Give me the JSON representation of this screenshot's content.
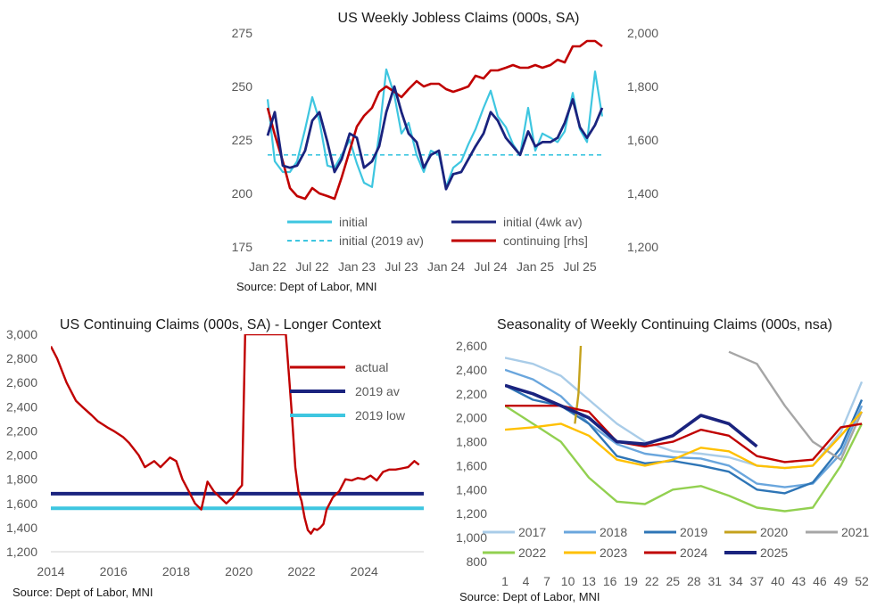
{
  "chart_data": [
    {
      "type": "line",
      "title": "US Weekly Jobless Claims (000s, SA)",
      "source": "Source: Dept of Labor, MNI",
      "x_tick_labels": [
        "Jan 22",
        "Jul 22",
        "Jan 23",
        "Jul 23",
        "Jan 24",
        "Jul 24",
        "Jan 25",
        "Jul 25"
      ],
      "x_range": [
        "2022-01",
        "2025-10"
      ],
      "ylim": [
        175,
        275
      ],
      "y_ticks": [
        "175",
        "200",
        "225",
        "250",
        "275"
      ],
      "y2lim": [
        1200,
        2000
      ],
      "y2_ticks": [
        "1,200",
        "1,400",
        "1,600",
        "1,800",
        "2,000"
      ],
      "grid": false,
      "legend_position": "bottom",
      "colors": {
        "initial": "#3ec6e0",
        "initial_4wk": "#1a237e",
        "initial_2019": "#3ec6e0",
        "continuing": "#c00000"
      },
      "series": [
        {
          "name": "initial",
          "axis": "left",
          "x": [
            2022.0,
            2022.08,
            2022.17,
            2022.25,
            2022.33,
            2022.42,
            2022.5,
            2022.58,
            2022.67,
            2022.75,
            2022.83,
            2022.92,
            2023.0,
            2023.08,
            2023.17,
            2023.25,
            2023.33,
            2023.42,
            2023.5,
            2023.58,
            2023.67,
            2023.75,
            2023.83,
            2023.92,
            2024.0,
            2024.08,
            2024.17,
            2024.25,
            2024.33,
            2024.42,
            2024.5,
            2024.58,
            2024.67,
            2024.75,
            2024.83,
            2024.92,
            2025.0,
            2025.08,
            2025.17,
            2025.25,
            2025.33,
            2025.42,
            2025.5,
            2025.58,
            2025.67,
            2025.75
          ],
          "values": [
            244,
            215,
            210,
            210,
            215,
            230,
            245,
            234,
            213,
            212,
            218,
            225,
            214,
            205,
            203,
            228,
            258,
            246,
            228,
            233,
            218,
            210,
            220,
            218,
            203,
            212,
            215,
            223,
            230,
            240,
            248,
            236,
            231,
            223,
            218,
            240,
            220,
            228,
            226,
            224,
            229,
            247,
            230,
            224,
            257,
            236
          ]
        },
        {
          "name": "initial (4wk av)",
          "axis": "left",
          "x": [
            2022.0,
            2022.08,
            2022.17,
            2022.25,
            2022.33,
            2022.42,
            2022.5,
            2022.58,
            2022.67,
            2022.75,
            2022.83,
            2022.92,
            2023.0,
            2023.08,
            2023.17,
            2023.25,
            2023.33,
            2023.42,
            2023.5,
            2023.58,
            2023.67,
            2023.75,
            2023.83,
            2023.92,
            2024.0,
            2024.08,
            2024.17,
            2024.25,
            2024.33,
            2024.42,
            2024.5,
            2024.58,
            2024.67,
            2024.75,
            2024.83,
            2024.92,
            2025.0,
            2025.08,
            2025.17,
            2025.25,
            2025.33,
            2025.42,
            2025.5,
            2025.58,
            2025.67,
            2025.75
          ],
          "values": [
            227,
            238,
            213,
            212,
            213,
            220,
            234,
            238,
            224,
            210,
            216,
            228,
            226,
            212,
            215,
            222,
            238,
            250,
            238,
            228,
            224,
            212,
            218,
            220,
            202,
            209,
            210,
            216,
            222,
            228,
            238,
            234,
            226,
            222,
            218,
            229,
            222,
            224,
            224,
            226,
            233,
            244,
            231,
            226,
            232,
            240
          ]
        },
        {
          "name": "initial (2019 av)",
          "axis": "left",
          "style": "dashed",
          "x": [
            2022.0,
            2025.75
          ],
          "values": [
            218,
            218
          ]
        },
        {
          "name": "continuing [rhs]",
          "axis": "right",
          "x": [
            2022.0,
            2022.08,
            2022.17,
            2022.25,
            2022.33,
            2022.42,
            2022.5,
            2022.58,
            2022.67,
            2022.75,
            2022.83,
            2022.92,
            2023.0,
            2023.08,
            2023.17,
            2023.25,
            2023.33,
            2023.42,
            2023.5,
            2023.58,
            2023.67,
            2023.75,
            2023.83,
            2023.92,
            2024.0,
            2024.08,
            2024.17,
            2024.25,
            2024.33,
            2024.42,
            2024.5,
            2024.58,
            2024.67,
            2024.75,
            2024.83,
            2024.92,
            2025.0,
            2025.08,
            2025.17,
            2025.25,
            2025.33,
            2025.42,
            2025.5,
            2025.58,
            2025.67,
            2025.75
          ],
          "values": [
            1720,
            1620,
            1520,
            1420,
            1390,
            1380,
            1420,
            1400,
            1390,
            1380,
            1460,
            1560,
            1650,
            1690,
            1720,
            1780,
            1800,
            1780,
            1760,
            1790,
            1820,
            1800,
            1810,
            1810,
            1790,
            1780,
            1790,
            1800,
            1840,
            1830,
            1860,
            1860,
            1870,
            1880,
            1870,
            1870,
            1880,
            1870,
            1880,
            1900,
            1890,
            1950,
            1950,
            1970,
            1970,
            1950
          ]
        }
      ]
    },
    {
      "type": "line",
      "title": "US Continuing Claims (000s, SA) - Longer Context",
      "source": "Source: Dept of Labor, MNI",
      "x_tick_labels": [
        "2014",
        "2016",
        "2018",
        "2020",
        "2022",
        "2024"
      ],
      "xlim": [
        2014,
        2025.9
      ],
      "ylim": [
        1200,
        3000
      ],
      "y_ticks": [
        "1,200",
        "1,400",
        "1,600",
        "1,800",
        "2,000",
        "2,200",
        "2,400",
        "2,600",
        "2,800",
        "3,000"
      ],
      "grid": false,
      "legend_position": "top-right",
      "colors": {
        "actual": "#c00000",
        "av2019": "#1a237e",
        "low2019": "#3ec6e0"
      },
      "series": [
        {
          "name": "actual",
          "x": [
            2014.0,
            2014.2,
            2014.5,
            2014.8,
            2015.0,
            2015.3,
            2015.5,
            2015.8,
            2016.0,
            2016.3,
            2016.5,
            2016.8,
            2017.0,
            2017.3,
            2017.5,
            2017.8,
            2018.0,
            2018.2,
            2018.4,
            2018.6,
            2018.8,
            2019.0,
            2019.2,
            2019.4,
            2019.6,
            2019.8,
            2020.0,
            2020.1,
            2020.2,
            2021.5,
            2021.6,
            2021.7,
            2021.8,
            2021.9,
            2022.0,
            2022.1,
            2022.2,
            2022.3,
            2022.4,
            2022.5,
            2022.6,
            2022.7,
            2022.8,
            2022.9,
            2023.0,
            2023.2,
            2023.4,
            2023.6,
            2023.8,
            2024.0,
            2024.2,
            2024.4,
            2024.6,
            2024.8,
            2025.0,
            2025.2,
            2025.4,
            2025.6,
            2025.75
          ],
          "values": [
            2900,
            2800,
            2600,
            2450,
            2400,
            2330,
            2280,
            2230,
            2200,
            2150,
            2100,
            2000,
            1900,
            1950,
            1900,
            1980,
            1950,
            1800,
            1700,
            1600,
            1550,
            1780,
            1700,
            1650,
            1600,
            1650,
            1720,
            1750,
            3000,
            3000,
            2650,
            2300,
            1900,
            1700,
            1620,
            1480,
            1380,
            1350,
            1390,
            1380,
            1400,
            1430,
            1550,
            1600,
            1650,
            1700,
            1800,
            1790,
            1810,
            1800,
            1830,
            1790,
            1860,
            1880,
            1880,
            1890,
            1900,
            1950,
            1920
          ]
        },
        {
          "name": "2019 av",
          "x": [
            2014,
            2025.9
          ],
          "values": [
            1680,
            1680
          ]
        },
        {
          "name": "2019 low",
          "x": [
            2014,
            2025.9
          ],
          "values": [
            1560,
            1560
          ]
        }
      ]
    },
    {
      "type": "line",
      "title": "Seasonality of Weekly Continuing Claims (000s, nsa)",
      "source": "Source: Dept of Labor, MNI",
      "x_tick_labels": [
        "1",
        "4",
        "7",
        "10",
        "13",
        "16",
        "19",
        "22",
        "25",
        "28",
        "31",
        "34",
        "37",
        "40",
        "43",
        "46",
        "49",
        "52"
      ],
      "xlim": [
        1,
        52
      ],
      "ylim": [
        800,
        2600
      ],
      "y_ticks": [
        "800",
        "1,000",
        "1,200",
        "1,400",
        "1,600",
        "1,800",
        "2,000",
        "2,200",
        "2,400",
        "2,600"
      ],
      "grid": false,
      "legend_position": "bottom",
      "weeks": [
        1,
        5,
        9,
        13,
        17,
        21,
        25,
        29,
        33,
        37,
        41,
        45,
        49,
        53
      ],
      "series": [
        {
          "name": "2017",
          "color": "#a9cce8",
          "values": [
            2500,
            2450,
            2350,
            2150,
            1950,
            1800,
            1720,
            1700,
            1670,
            1600,
            1580,
            1600,
            1880,
            2300
          ]
        },
        {
          "name": "2018",
          "color": "#6aa6dd",
          "values": [
            2400,
            2320,
            2180,
            1950,
            1780,
            1700,
            1670,
            1660,
            1600,
            1450,
            1420,
            1450,
            1700,
            2100
          ]
        },
        {
          "name": "2019",
          "color": "#2e75b6",
          "values": [
            2270,
            2150,
            2100,
            1950,
            1680,
            1620,
            1640,
            1600,
            1550,
            1400,
            1370,
            1460,
            1750,
            2150
          ]
        },
        {
          "name": "2020",
          "color": "#c5a21c",
          "values": [
            null,
            null,
            null,
            2000,
            null,
            null,
            null,
            null,
            null,
            null,
            null,
            null,
            null,
            null
          ]
        },
        {
          "name": "2021",
          "color": "#a6a6a6",
          "values": [
            null,
            null,
            null,
            null,
            null,
            null,
            null,
            null,
            2550,
            2450,
            2100,
            1800,
            1650,
            2050
          ]
        },
        {
          "name": "2022",
          "color": "#92d050",
          "values": [
            2100,
            1950,
            1800,
            1500,
            1300,
            1280,
            1400,
            1430,
            1350,
            1250,
            1220,
            1250,
            1600,
            1950
          ]
        },
        {
          "name": "2023",
          "color": "#ffc000",
          "values": [
            1900,
            1920,
            1950,
            1850,
            1650,
            1600,
            1650,
            1750,
            1720,
            1600,
            1580,
            1600,
            1850,
            2050
          ]
        },
        {
          "name": "2024",
          "color": "#c00000",
          "values": [
            2100,
            2100,
            2100,
            2050,
            1800,
            1760,
            1800,
            1900,
            1850,
            1680,
            1630,
            1650,
            1920,
            1950
          ]
        },
        {
          "name": "2025",
          "color": "#1a237e",
          "values": [
            2270,
            2200,
            2100,
            2000,
            1800,
            1780,
            1850,
            2020,
            1950,
            1760,
            null,
            null,
            null,
            null
          ]
        }
      ]
    }
  ]
}
